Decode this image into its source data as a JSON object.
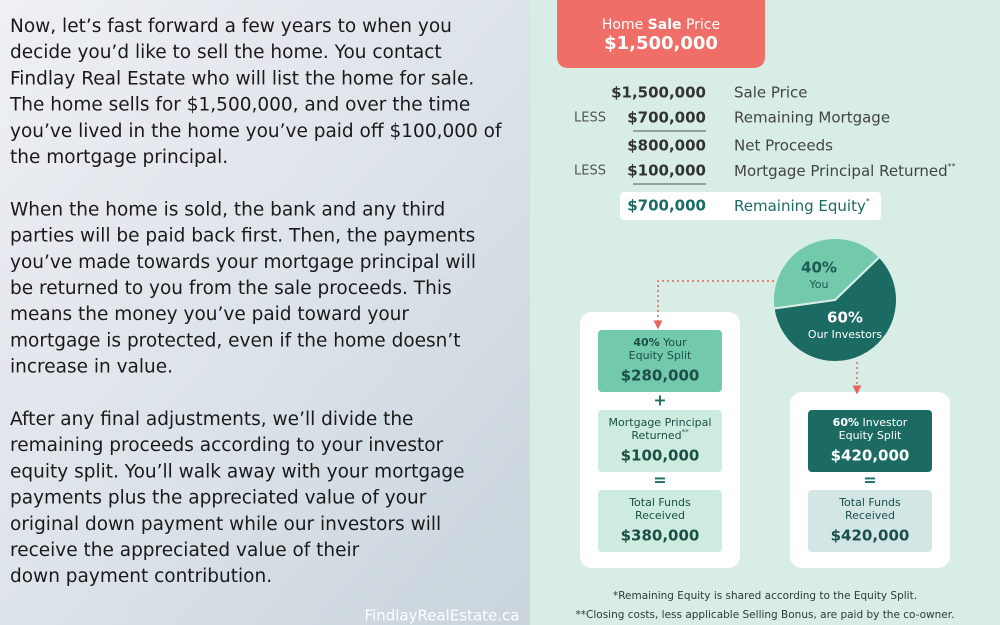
{
  "article": {
    "paragraphs": [
      [
        "Now, let’s fast forward a few years to when you",
        "decide you’d like to sell the home. You contact",
        "Findlay Real Estate who will list the home for sale.",
        "The home sells for $1,500,000, and over the time",
        "you’ve lived in the home you’ve paid off $100,000 of",
        "the mortgage principal."
      ],
      [
        "When the home is sold, the bank and any third",
        "parties will be paid back first. Then, the payments",
        "you’ve made towards your mortgage principal will",
        "be returned to you from the sale proceeds. This",
        "means the money you’ve paid toward your",
        "mortgage is protected, even if the home doesn’t",
        "increase in value."
      ],
      [
        "After any final adjustments, we’ll divide the",
        "remaining proceeds according to your investor",
        "equity split. You’ll walk away with your mortgage",
        "payments plus the appreciated value of your",
        "original down payment while our investors will",
        "receive the appreciated value of their",
        "down payment contribution."
      ]
    ],
    "site": "FindlayRealEstate.ca"
  },
  "header": {
    "parts": [
      "Home",
      "Sale",
      "Price"
    ],
    "amount": "$1,500,000"
  },
  "ledger": {
    "rows": [
      {
        "amount": "$1,500,000",
        "label": "Sale Price"
      },
      {
        "less": "LESS",
        "amount": "$700,000",
        "label": "Remaining Mortgage",
        "rule": true
      },
      {
        "amount": "$800,000",
        "label": "Net Proceeds"
      },
      {
        "less": "LESS",
        "amount": "$100,000",
        "label": "Mortgage Principal Returned",
        "mark": "**",
        "rule": true
      }
    ],
    "result": {
      "amount": "$700,000",
      "label": "Remaining Equity",
      "mark": "*"
    }
  },
  "pie": {
    "slices": [
      {
        "value": 40,
        "value_label": "40%",
        "name": "You",
        "color": "#72c9ab"
      },
      {
        "value": 60,
        "value_label": "60%",
        "name": "Our Investors",
        "color": "#1b6b63"
      }
    ]
  },
  "owner_column": {
    "boxes": [
      {
        "lead": "40%",
        "lines": [
          "Your",
          "Equity Split"
        ],
        "amount": "$280,000"
      },
      {
        "lines": [
          "Mortgage Principal",
          "Returned"
        ],
        "mark": "**",
        "amount": "$100,000"
      },
      {
        "lines": [
          "Total Funds",
          "Received"
        ],
        "amount": "$380,000"
      }
    ],
    "operators": [
      "+",
      "="
    ]
  },
  "investor_column": {
    "boxes": [
      {
        "lead": "60%",
        "lines": [
          "Investor",
          "Equity Split"
        ],
        "amount": "$420,000"
      },
      {
        "lines": [
          "Total Funds",
          "Received"
        ],
        "amount": "$420,000"
      }
    ],
    "operators": [
      "="
    ]
  },
  "footnotes": [
    "*Remaining Equity is shared according to the Equity Split.",
    "**Closing costs, less applicable Selling Bonus, are paid by the co-owner."
  ]
}
